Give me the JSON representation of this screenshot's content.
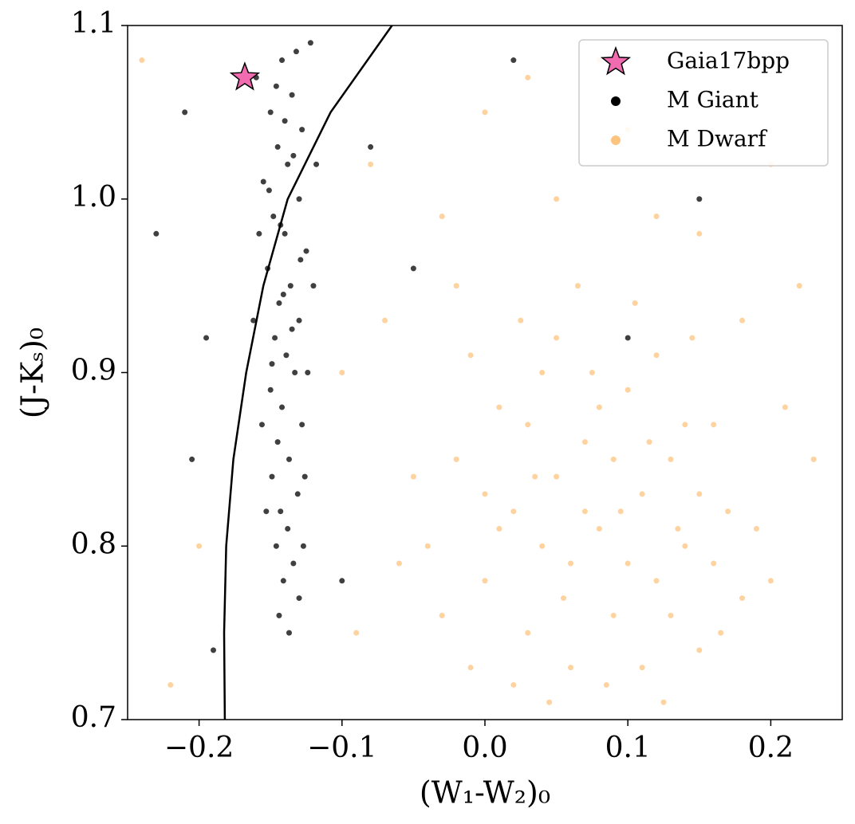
{
  "chart_data": {
    "type": "scatter",
    "xlabel": "(W₁-W₂)₀",
    "ylabel": "(J-Kₛ)₀",
    "xlim": [
      -0.25,
      0.25
    ],
    "ylim": [
      0.7,
      1.1
    ],
    "xticks": [
      {
        "value": -0.2,
        "label": "−0.2"
      },
      {
        "value": -0.1,
        "label": "−0.1"
      },
      {
        "value": 0.0,
        "label": "0.0"
      },
      0.1,
      0.2
    ],
    "yticks": [
      0.7,
      0.8,
      0.9,
      {
        "value": 1.0,
        "label": "1.0"
      },
      1.1
    ],
    "legend": "upper right",
    "series": [
      {
        "name": "Gaia17bpp",
        "color": "#f06bb0",
        "marker": "star",
        "x": [
          -0.168
        ],
        "y": [
          1.07
        ]
      },
      {
        "name": "M Giant",
        "color": "#000000",
        "marker": "dot",
        "x": [
          -0.142,
          -0.135,
          -0.15,
          -0.128,
          -0.145,
          -0.138,
          -0.155,
          -0.13,
          -0.148,
          -0.14,
          -0.125,
          -0.152,
          -0.136,
          -0.144,
          -0.13,
          -0.147,
          -0.139,
          -0.133,
          -0.15,
          -0.142,
          -0.128,
          -0.145,
          -0.137,
          -0.149,
          -0.131,
          -0.143,
          -0.138,
          -0.146,
          -0.134,
          -0.141,
          -0.13,
          -0.144,
          -0.137,
          -0.122,
          -0.16,
          -0.118,
          -0.158,
          -0.12,
          -0.162,
          -0.124,
          -0.156,
          -0.126,
          -0.153,
          -0.127,
          -0.132,
          -0.146,
          -0.14,
          -0.134,
          -0.151,
          -0.143,
          -0.129,
          -0.141,
          -0.135,
          -0.149,
          -0.21,
          -0.23,
          -0.195,
          -0.08,
          -0.05,
          0.02,
          0.15,
          -0.205,
          -0.1,
          0.1,
          -0.19
        ],
        "y": [
          1.08,
          1.06,
          1.05,
          1.04,
          1.03,
          1.02,
          1.01,
          1.0,
          0.99,
          0.98,
          0.97,
          0.96,
          0.95,
          0.94,
          0.93,
          0.92,
          0.91,
          0.9,
          0.89,
          0.88,
          0.87,
          0.86,
          0.85,
          0.84,
          0.83,
          0.82,
          0.81,
          0.8,
          0.79,
          0.78,
          0.77,
          0.76,
          0.75,
          1.09,
          1.07,
          1.02,
          0.98,
          0.95,
          0.93,
          0.9,
          0.87,
          0.84,
          0.82,
          0.8,
          1.085,
          1.065,
          1.045,
          1.025,
          1.005,
          0.985,
          0.965,
          0.945,
          0.925,
          0.905,
          1.05,
          0.98,
          0.92,
          1.03,
          0.96,
          1.08,
          1.0,
          0.85,
          0.78,
          0.92,
          0.74
        ]
      },
      {
        "name": "M Dwarf",
        "color": "#fdc47f",
        "marker": "dot",
        "x": [
          -0.04,
          -0.02,
          0.0,
          0.01,
          0.02,
          0.03,
          0.04,
          0.05,
          0.06,
          0.07,
          0.08,
          0.09,
          0.1,
          0.11,
          0.12,
          0.13,
          0.14,
          0.15,
          0.16,
          0.17,
          0.18,
          -0.05,
          -0.03,
          -0.01,
          0.0,
          0.02,
          0.03,
          0.04,
          0.05,
          0.06,
          0.07,
          0.08,
          0.09,
          0.1,
          0.11,
          0.12,
          0.13,
          0.14,
          0.15,
          0.16,
          0.19,
          -0.06,
          0.01,
          0.035,
          0.055,
          0.075,
          0.095,
          0.115,
          0.135,
          0.025,
          0.065,
          0.105,
          -0.02,
          0.145,
          0.045,
          0.085,
          0.125,
          -0.01,
          0.165,
          0.2,
          -0.08,
          0.0,
          0.05,
          0.1,
          0.15,
          0.2,
          0.22,
          -0.1,
          -0.2,
          -0.22,
          0.23,
          -0.09,
          0.08,
          -0.03,
          0.18,
          0.21,
          -0.07,
          0.12,
          0.03,
          -0.24
        ],
        "y": [
          0.8,
          0.85,
          0.78,
          0.88,
          0.82,
          0.75,
          0.9,
          0.84,
          0.79,
          0.86,
          0.81,
          0.76,
          0.89,
          0.83,
          0.78,
          0.85,
          0.8,
          0.74,
          0.87,
          0.82,
          0.77,
          0.84,
          0.76,
          0.91,
          0.83,
          0.72,
          0.87,
          0.8,
          0.92,
          0.73,
          0.82,
          0.88,
          0.85,
          0.79,
          0.73,
          0.91,
          0.76,
          0.87,
          0.83,
          0.79,
          0.81,
          0.79,
          0.81,
          0.84,
          0.77,
          0.9,
          0.82,
          0.86,
          0.81,
          0.93,
          0.95,
          0.94,
          0.95,
          0.92,
          0.71,
          0.72,
          0.71,
          0.73,
          0.75,
          0.78,
          1.02,
          1.05,
          1.0,
          1.04,
          0.98,
          1.02,
          0.95,
          0.9,
          0.8,
          0.72,
          0.85,
          0.75,
          1.08,
          0.99,
          0.93,
          0.88,
          0.93,
          0.99,
          1.07,
          1.08
        ]
      }
    ],
    "curve": {
      "color": "#000000",
      "x": [
        -0.182,
        -0.1825,
        -0.181,
        -0.176,
        -0.167,
        -0.155,
        -0.138,
        -0.108,
        -0.065
      ],
      "y": [
        0.7,
        0.75,
        0.8,
        0.85,
        0.9,
        0.95,
        1.0,
        1.05,
        1.1
      ]
    }
  }
}
